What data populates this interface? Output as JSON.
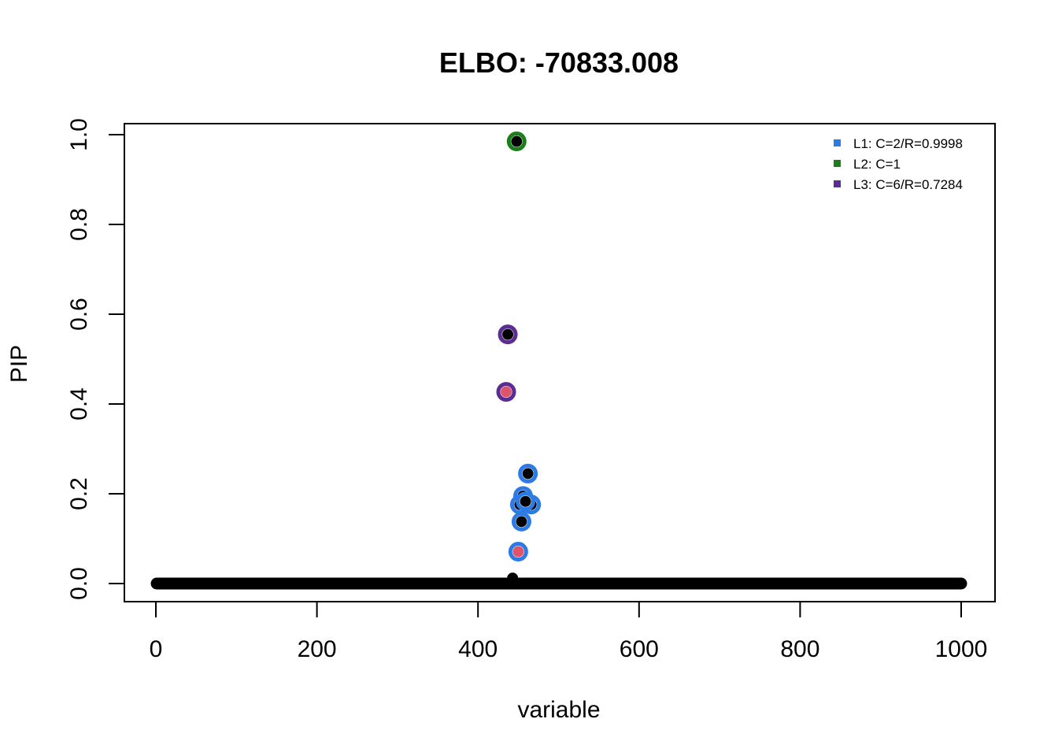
{
  "chart_data": {
    "type": "scatter",
    "title": "ELBO: -70833.008",
    "xlabel": "variable",
    "ylabel": "PIP",
    "xlim": [
      0,
      1000
    ],
    "ylim": [
      0,
      1
    ],
    "xticks": [
      0,
      200,
      400,
      600,
      800,
      1000
    ],
    "yticks": [
      0.0,
      0.2,
      0.4,
      0.6,
      0.8,
      1.0
    ],
    "xtick_labels": [
      "0",
      "200",
      "400",
      "600",
      "800",
      "1000"
    ],
    "ytick_labels": [
      "0.0",
      "0.2",
      "0.4",
      "0.6",
      "0.8",
      "1.0"
    ],
    "grid": false,
    "legend_position": "top-right",
    "baseline": {
      "x_start": 1,
      "x_end": 1000,
      "y": 0.0,
      "color": "#000000"
    },
    "credible_sets": [
      {
        "name": "L1: C=2/R=0.9998",
        "color": "#2C7BE5"
      },
      {
        "name": "L2: C=1",
        "color": "#1A7F1A"
      },
      {
        "name": "L3: C=6/R=0.7284",
        "color": "#5B2C91"
      }
    ],
    "points": [
      {
        "x": 448,
        "y": 0.985,
        "fill": "#000000",
        "cs": 1
      },
      {
        "x": 437,
        "y": 0.555,
        "fill": "#000000",
        "cs": 2
      },
      {
        "x": 435,
        "y": 0.427,
        "fill": "#DF536B",
        "cs": 2
      },
      {
        "x": 462,
        "y": 0.245,
        "fill": "#000000",
        "cs": 0
      },
      {
        "x": 456,
        "y": 0.195,
        "fill": "#000000",
        "cs": 0
      },
      {
        "x": 466,
        "y": 0.176,
        "fill": "#000000",
        "cs": 0
      },
      {
        "x": 452,
        "y": 0.176,
        "fill": "#000000",
        "cs": 0
      },
      {
        "x": 459,
        "y": 0.183,
        "fill": "#000000",
        "cs": 0
      },
      {
        "x": 454,
        "y": 0.138,
        "fill": "#000000",
        "cs": 0
      },
      {
        "x": 450,
        "y": 0.071,
        "fill": "#DF536B",
        "cs": 0
      },
      {
        "x": 443,
        "y": 0.012,
        "fill": "#000000",
        "cs": null
      }
    ]
  }
}
